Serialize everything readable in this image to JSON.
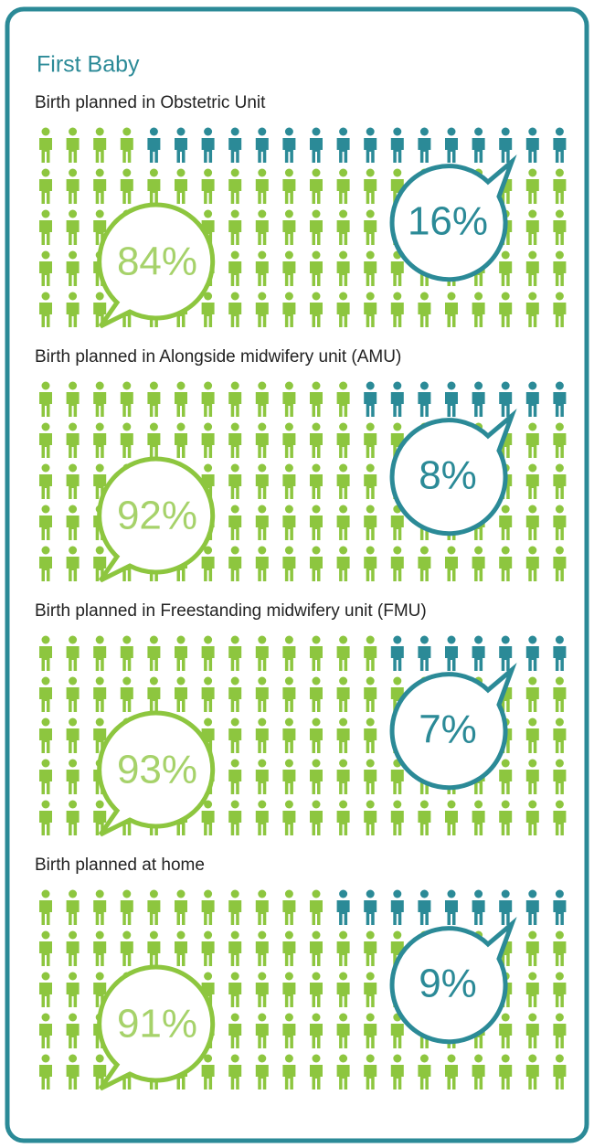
{
  "title": "First Baby",
  "chart_data": [
    {
      "type": "pictograph",
      "title": "Birth planned in Obstetric Unit",
      "values": [
        84,
        16
      ],
      "value_labels": [
        "84%",
        "16%"
      ],
      "colors": [
        "#8dc63f",
        "#2b8a97"
      ]
    },
    {
      "type": "pictograph",
      "title": "Birth planned in Alongside midwifery unit (AMU)",
      "values": [
        92,
        8
      ],
      "value_labels": [
        "92%",
        "8%"
      ],
      "colors": [
        "#8dc63f",
        "#2b8a97"
      ]
    },
    {
      "type": "pictograph",
      "title": "Birth planned in Freestanding midwifery unit (FMU)",
      "values": [
        93,
        7
      ],
      "value_labels": [
        "93%",
        "7%"
      ],
      "colors": [
        "#8dc63f",
        "#2b8a97"
      ]
    },
    {
      "type": "pictograph",
      "title": "Birth planned at home",
      "values": [
        91,
        9
      ],
      "value_labels": [
        "91%",
        "9%"
      ],
      "colors": [
        "#8dc63f",
        "#2b8a97"
      ]
    }
  ]
}
